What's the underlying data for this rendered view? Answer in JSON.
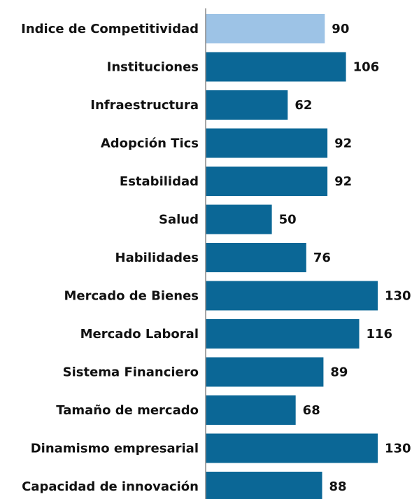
{
  "chart_data": {
    "type": "barh",
    "categories": [
      "Indice de Competitividad",
      "Instituciones",
      "Infraestructura",
      "Adopción Tics",
      "Estabilidad",
      "Salud",
      "Habilidades",
      "Mercado de Bienes",
      "Mercado Laboral",
      "Sistema Financiero",
      "Tamaño de mercado",
      "Dinamismo empresarial",
      "Capacidad de innovación"
    ],
    "values": [
      90,
      106,
      62,
      92,
      92,
      50,
      76,
      130,
      116,
      89,
      68,
      130,
      88
    ],
    "colors": [
      "#9dc3e6",
      "#0b6796",
      "#0b6796",
      "#0b6796",
      "#0b6796",
      "#0b6796",
      "#0b6796",
      "#0b6796",
      "#0b6796",
      "#0b6796",
      "#0b6796",
      "#0b6796",
      "#0b6796"
    ],
    "xlim": [
      0,
      130
    ]
  }
}
